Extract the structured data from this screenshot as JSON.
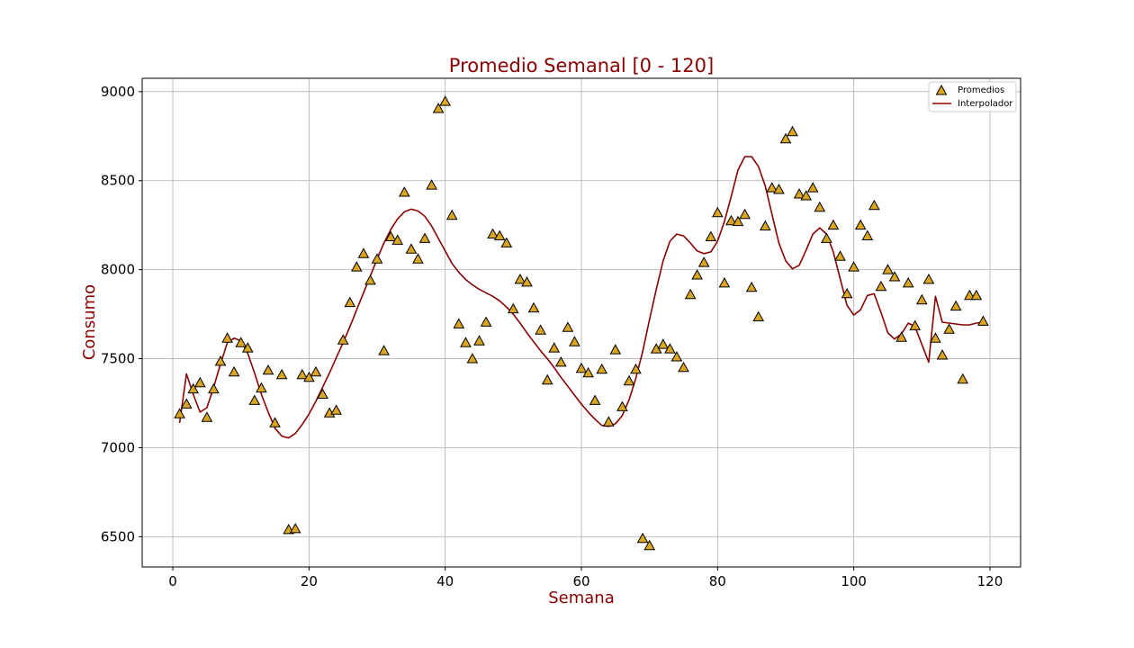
{
  "chart_data": {
    "type": "scatter",
    "title": "Promedio Semanal [0 - 120]",
    "xlabel": "Semana",
    "ylabel": "Consumo",
    "xlim": [
      -4.5,
      124.5
    ],
    "ylim": [
      6330,
      9075
    ],
    "x_ticks": [
      0,
      20,
      40,
      60,
      80,
      100,
      120
    ],
    "y_ticks": [
      6500,
      7000,
      7500,
      8000,
      8500,
      9000
    ],
    "grid": true,
    "legend_position": "top-right",
    "colors": {
      "text": "#8b0000",
      "marker": "#daa520",
      "marker_edge": "#000000",
      "line": "#8b0000",
      "grid": "#b0b0b0"
    },
    "series": [
      {
        "name": "Promedios",
        "kind": "scatter",
        "marker": "triangle",
        "x": [
          1,
          2,
          3,
          4,
          5,
          6,
          7,
          8,
          9,
          10,
          11,
          12,
          13,
          14,
          15,
          16,
          17,
          18,
          19,
          20,
          21,
          22,
          23,
          24,
          25,
          26,
          27,
          28,
          29,
          30,
          31,
          32,
          33,
          34,
          35,
          36,
          37,
          38,
          39,
          40,
          41,
          42,
          43,
          44,
          45,
          46,
          47,
          48,
          49,
          50,
          51,
          52,
          53,
          54,
          55,
          56,
          57,
          58,
          59,
          60,
          61,
          62,
          63,
          64,
          65,
          66,
          67,
          68,
          69,
          70,
          71,
          72,
          73,
          74,
          75,
          76,
          77,
          78,
          79,
          80,
          81,
          82,
          83,
          84,
          85,
          86,
          87,
          88,
          89,
          90,
          91,
          92,
          93,
          94,
          95,
          96,
          97,
          98,
          99,
          100,
          101,
          102,
          103,
          104,
          105,
          106,
          107,
          108,
          109,
          110,
          111,
          112,
          113,
          114,
          115,
          116,
          117,
          118,
          119
        ],
        "y": [
          7190,
          7245,
          7330,
          7365,
          7170,
          7330,
          7485,
          7615,
          7425,
          7590,
          7560,
          7265,
          7335,
          7435,
          7140,
          7410,
          6540,
          6545,
          7410,
          7395,
          7425,
          7300,
          7195,
          7210,
          7605,
          7815,
          8015,
          8090,
          7940,
          8060,
          7545,
          8185,
          8165,
          8435,
          8115,
          8060,
          8175,
          8475,
          8905,
          8945,
          8305,
          7695,
          7590,
          7500,
          7600,
          7705,
          8200,
          8190,
          8150,
          7780,
          7945,
          7930,
          7785,
          7660,
          7380,
          7560,
          7480,
          7675,
          7595,
          7445,
          7420,
          7265,
          7440,
          7145,
          7550,
          7230,
          7375,
          7440,
          6490,
          6450,
          7555,
          7580,
          7555,
          7510,
          7450,
          7860,
          7970,
          8040,
          8185,
          8320,
          7925,
          8275,
          8270,
          8310,
          7900,
          7735,
          8245,
          8460,
          8450,
          8735,
          8775,
          8425,
          8415,
          8460,
          8350,
          8175,
          8250,
          8075,
          7865,
          8015,
          8250,
          8190,
          8360,
          7905,
          8000,
          7960,
          7620,
          7925,
          7685,
          7830,
          7945,
          7615,
          7520,
          7665,
          7795,
          7385,
          7855,
          7855,
          7710
        ]
      },
      {
        "name": "Interpolador",
        "kind": "line",
        "x": [
          1,
          2,
          3,
          4,
          5,
          6,
          7,
          8,
          9,
          10,
          11,
          12,
          13,
          14,
          15,
          16,
          17,
          18,
          19,
          20,
          21,
          22,
          23,
          24,
          25,
          26,
          27,
          28,
          29,
          30,
          31,
          32,
          33,
          34,
          35,
          36,
          37,
          38,
          39,
          40,
          41,
          42,
          43,
          44,
          45,
          46,
          47,
          48,
          49,
          50,
          51,
          52,
          53,
          54,
          55,
          56,
          57,
          58,
          59,
          60,
          61,
          62,
          63,
          64,
          65,
          66,
          67,
          68,
          69,
          70,
          71,
          72,
          73,
          74,
          75,
          76,
          77,
          78,
          79,
          80,
          81,
          82,
          83,
          84,
          85,
          86,
          87,
          88,
          89,
          90,
          91,
          92,
          93,
          94,
          95,
          96,
          97,
          98,
          99,
          100,
          101,
          102,
          103,
          104,
          105,
          106,
          107,
          108,
          109,
          110,
          111,
          112,
          113,
          114,
          115,
          116,
          117,
          118,
          119
        ],
        "y": [
          7140,
          7415,
          7300,
          7200,
          7225,
          7340,
          7470,
          7590,
          7615,
          7600,
          7530,
          7420,
          7300,
          7200,
          7110,
          7065,
          7055,
          7080,
          7130,
          7190,
          7260,
          7340,
          7420,
          7505,
          7590,
          7680,
          7775,
          7870,
          7965,
          8060,
          8150,
          8225,
          8285,
          8325,
          8340,
          8330,
          8300,
          8245,
          8175,
          8105,
          8035,
          7985,
          7945,
          7915,
          7890,
          7870,
          7850,
          7825,
          7790,
          7750,
          7700,
          7645,
          7595,
          7545,
          7500,
          7450,
          7395,
          7345,
          7295,
          7245,
          7200,
          7160,
          7125,
          7120,
          7135,
          7180,
          7270,
          7390,
          7540,
          7720,
          7890,
          8050,
          8160,
          8200,
          8190,
          8150,
          8105,
          8090,
          8100,
          8160,
          8270,
          8410,
          8560,
          8635,
          8635,
          8580,
          8470,
          8310,
          8150,
          8050,
          8005,
          8025,
          8110,
          8200,
          8235,
          8200,
          8100,
          7950,
          7800,
          7745,
          7775,
          7855,
          7865,
          7760,
          7645,
          7610,
          7640,
          7700,
          7680,
          7580,
          7480,
          7850,
          7705,
          7700,
          7695,
          7690,
          7690,
          7700,
          7705
        ]
      }
    ]
  }
}
